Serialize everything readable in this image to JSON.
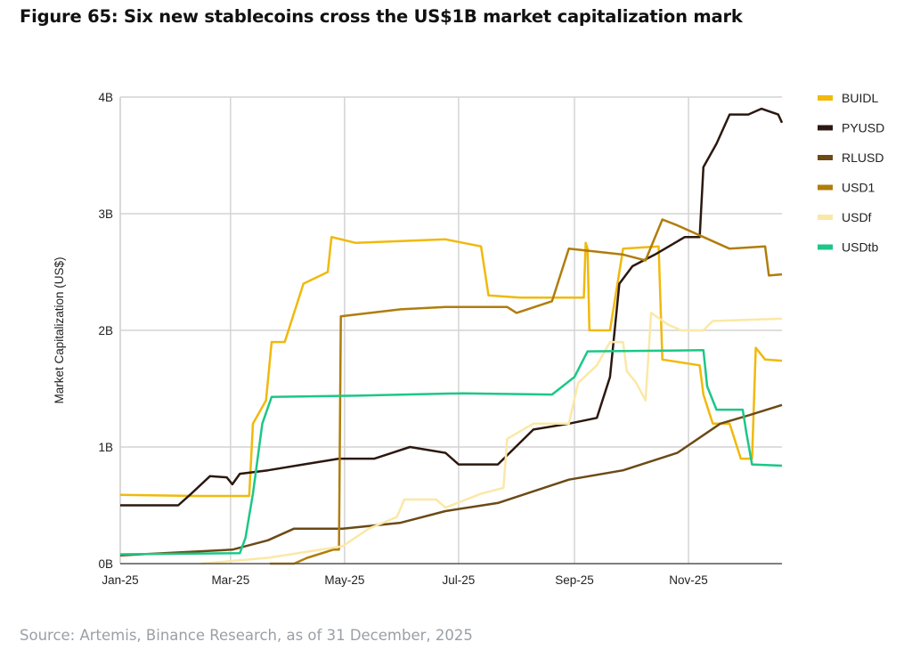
{
  "chart_data": {
    "type": "line",
    "title": "Figure 65: Six new stablecoins cross the US$1B market capitalization mark",
    "source": "Source: Artemis, Binance Research, as of 31 December, 2025",
    "xlabel": "",
    "ylabel": "Market Capitalization (US$)",
    "x_unit": "days since 1 Jan 2025",
    "xlim": [
      0,
      354
    ],
    "ylim": [
      0,
      4
    ],
    "grid": true,
    "legend_position": "right",
    "x_ticks": [
      {
        "day": 0,
        "label": "Jan-25"
      },
      {
        "day": 59,
        "label": "Mar-25"
      },
      {
        "day": 120,
        "label": "May-25"
      },
      {
        "day": 181,
        "label": "Jul-25"
      },
      {
        "day": 243,
        "label": "Sep-25"
      },
      {
        "day": 304,
        "label": "Nov-25"
      }
    ],
    "y_ticks": [
      {
        "value": 0,
        "label": "0B"
      },
      {
        "value": 1,
        "label": "1B"
      },
      {
        "value": 2,
        "label": "2B"
      },
      {
        "value": 3,
        "label": "3B"
      },
      {
        "value": 4,
        "label": "4B"
      }
    ],
    "series": [
      {
        "name": "BUIDL",
        "color": "#F0B90B",
        "points": [
          [
            0,
            0.59
          ],
          [
            40,
            0.58
          ],
          [
            69,
            0.58
          ],
          [
            71,
            1.2
          ],
          [
            78,
            1.4
          ],
          [
            81,
            1.9
          ],
          [
            88,
            1.9
          ],
          [
            98,
            2.4
          ],
          [
            111,
            2.5
          ],
          [
            113,
            2.8
          ],
          [
            126,
            2.75
          ],
          [
            174,
            2.78
          ],
          [
            193,
            2.72
          ],
          [
            197,
            2.3
          ],
          [
            214,
            2.28
          ],
          [
            248,
            2.28
          ],
          [
            249,
            2.75
          ],
          [
            250,
            2.7
          ],
          [
            251,
            2.0
          ],
          [
            262,
            2.0
          ],
          [
            269,
            2.7
          ],
          [
            288,
            2.72
          ],
          [
            290,
            1.75
          ],
          [
            310,
            1.7
          ],
          [
            312,
            1.45
          ],
          [
            317,
            1.2
          ],
          [
            326,
            1.2
          ],
          [
            332,
            0.9
          ],
          [
            338,
            0.9
          ],
          [
            340,
            1.85
          ],
          [
            345,
            1.75
          ],
          [
            354,
            1.74
          ]
        ]
      },
      {
        "name": "PYUSD",
        "color": "#2C1810",
        "points": [
          [
            0,
            0.5
          ],
          [
            31,
            0.5
          ],
          [
            38,
            0.6
          ],
          [
            48,
            0.75
          ],
          [
            57,
            0.74
          ],
          [
            60,
            0.68
          ],
          [
            64,
            0.77
          ],
          [
            79,
            0.8
          ],
          [
            98,
            0.85
          ],
          [
            117,
            0.9
          ],
          [
            136,
            0.9
          ],
          [
            155,
            1.0
          ],
          [
            174,
            0.95
          ],
          [
            181,
            0.85
          ],
          [
            202,
            0.85
          ],
          [
            221,
            1.15
          ],
          [
            240,
            1.2
          ],
          [
            255,
            1.25
          ],
          [
            262,
            1.6
          ],
          [
            267,
            2.4
          ],
          [
            274,
            2.55
          ],
          [
            286,
            2.65
          ],
          [
            302,
            2.8
          ],
          [
            310,
            2.8
          ],
          [
            312,
            3.4
          ],
          [
            319,
            3.6
          ],
          [
            326,
            3.85
          ],
          [
            336,
            3.85
          ],
          [
            343,
            3.9
          ],
          [
            352,
            3.85
          ],
          [
            354,
            3.78
          ]
        ]
      },
      {
        "name": "RLUSD",
        "color": "#6B4A16",
        "points": [
          [
            0,
            0.07
          ],
          [
            60,
            0.12
          ],
          [
            79,
            0.2
          ],
          [
            93,
            0.3
          ],
          [
            119,
            0.3
          ],
          [
            150,
            0.35
          ],
          [
            174,
            0.45
          ],
          [
            202,
            0.52
          ],
          [
            240,
            0.72
          ],
          [
            269,
            0.8
          ],
          [
            298,
            0.95
          ],
          [
            321,
            1.2
          ],
          [
            336,
            1.27
          ],
          [
            354,
            1.36
          ]
        ]
      },
      {
        "name": "USD1",
        "color": "#B07D0C",
        "points": [
          [
            80,
            0.0
          ],
          [
            93,
            0.0
          ],
          [
            100,
            0.05
          ],
          [
            114,
            0.12
          ],
          [
            117,
            0.12
          ],
          [
            118,
            2.12
          ],
          [
            150,
            2.18
          ],
          [
            174,
            2.2
          ],
          [
            207,
            2.2
          ],
          [
            212,
            2.15
          ],
          [
            231,
            2.25
          ],
          [
            238,
            2.6
          ],
          [
            240,
            2.7
          ],
          [
            269,
            2.65
          ],
          [
            281,
            2.6
          ],
          [
            290,
            2.95
          ],
          [
            298,
            2.9
          ],
          [
            312,
            2.8
          ],
          [
            326,
            2.7
          ],
          [
            345,
            2.72
          ],
          [
            347,
            2.47
          ],
          [
            354,
            2.48
          ]
        ]
      },
      {
        "name": "USDf",
        "color": "#FBE8A6",
        "points": [
          [
            43,
            0.0
          ],
          [
            79,
            0.05
          ],
          [
            119,
            0.15
          ],
          [
            133,
            0.3
          ],
          [
            148,
            0.4
          ],
          [
            152,
            0.55
          ],
          [
            169,
            0.55
          ],
          [
            174,
            0.48
          ],
          [
            193,
            0.6
          ],
          [
            205,
            0.65
          ],
          [
            207,
            1.07
          ],
          [
            221,
            1.2
          ],
          [
            240,
            1.2
          ],
          [
            245,
            1.55
          ],
          [
            255,
            1.7
          ],
          [
            262,
            1.9
          ],
          [
            269,
            1.9
          ],
          [
            271,
            1.65
          ],
          [
            276,
            1.55
          ],
          [
            281,
            1.4
          ],
          [
            284,
            2.15
          ],
          [
            293,
            2.05
          ],
          [
            300,
            2.0
          ],
          [
            312,
            2.0
          ],
          [
            317,
            2.08
          ],
          [
            354,
            2.1
          ]
        ]
      },
      {
        "name": "USDtb",
        "color": "#1CC787",
        "points": [
          [
            0,
            0.08
          ],
          [
            64,
            0.09
          ],
          [
            67,
            0.22
          ],
          [
            71,
            0.6
          ],
          [
            76,
            1.2
          ],
          [
            81,
            1.43
          ],
          [
            126,
            1.44
          ],
          [
            183,
            1.46
          ],
          [
            231,
            1.45
          ],
          [
            243,
            1.6
          ],
          [
            250,
            1.82
          ],
          [
            312,
            1.83
          ],
          [
            314,
            1.52
          ],
          [
            319,
            1.32
          ],
          [
            333,
            1.32
          ],
          [
            335,
            1.12
          ],
          [
            338,
            0.85
          ],
          [
            354,
            0.84
          ]
        ]
      }
    ]
  }
}
